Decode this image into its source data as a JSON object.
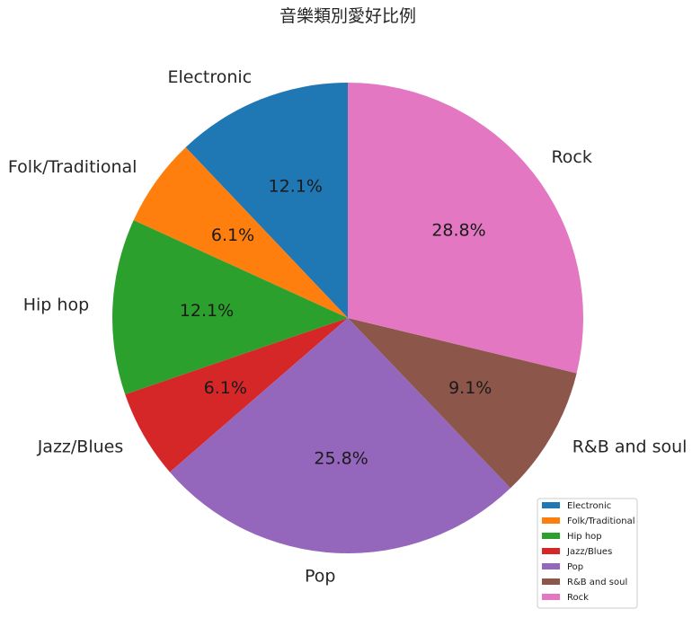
{
  "chart_data": {
    "type": "pie",
    "title": "音樂類別愛好比例",
    "categories": [
      "Electronic",
      "Folk/Traditional",
      "Hip hop",
      "Jazz/Blues",
      "Pop",
      "R&B and soul",
      "Rock"
    ],
    "values": [
      12.1,
      6.1,
      12.1,
      6.1,
      25.8,
      9.1,
      28.8
    ],
    "percent_labels": [
      "12.1%",
      "6.1%",
      "12.1%",
      "6.1%",
      "25.8%",
      "9.1%",
      "28.8%"
    ],
    "colors": [
      "#1f77b4",
      "#ff7f0e",
      "#2ca02c",
      "#d62728",
      "#9467bd",
      "#8c564b",
      "#e377c2"
    ],
    "start_angle": 90,
    "direction": "counterclockwise",
    "legend": {
      "placement": "lower-right",
      "entries": [
        "Electronic",
        "Folk/Traditional",
        "Hip hop",
        "Jazz/Blues",
        "Pop",
        "R&B and soul",
        "Rock"
      ]
    }
  }
}
